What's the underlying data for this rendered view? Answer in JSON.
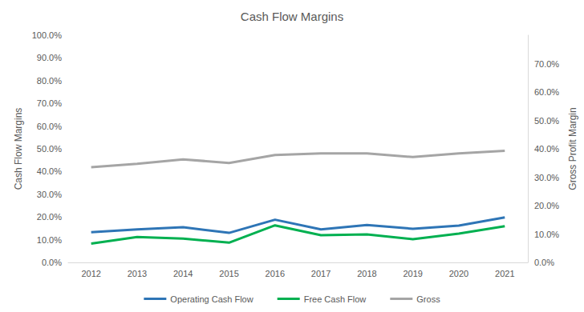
{
  "chart_data": {
    "type": "line",
    "title": "Cash Flow Margins",
    "y_label": "Cash Flow Margins",
    "y2_label": "Gross Profit Margin",
    "categories": [
      "2012",
      "2013",
      "2014",
      "2015",
      "2016",
      "2017",
      "2018",
      "2019",
      "2020",
      "2021"
    ],
    "series": [
      {
        "name": "Operating Cash Flow",
        "color": "#2e75b6",
        "values": [
          13.3,
          14.5,
          15.5,
          13.0,
          18.8,
          14.5,
          16.5,
          14.8,
          16.2,
          19.8
        ]
      },
      {
        "name": "Free Cash Flow",
        "color": "#00b050",
        "values": [
          8.3,
          11.2,
          10.5,
          8.7,
          16.3,
          12.0,
          12.3,
          10.2,
          12.7,
          15.9
        ]
      },
      {
        "name": "Gross",
        "color": "#a5a5a5",
        "axis": "y2",
        "values": [
          33.5,
          34.7,
          36.3,
          35.0,
          37.8,
          38.4,
          38.4,
          37.1,
          38.4,
          39.3
        ]
      }
    ],
    "ylim": [
      0,
      100
    ],
    "yticks": [
      {
        "value": 0,
        "label": "0.0%"
      },
      {
        "value": 10,
        "label": "10.0%"
      },
      {
        "value": 20,
        "label": "20.0%"
      },
      {
        "value": 30,
        "label": "30.0%"
      },
      {
        "value": 40,
        "label": "40.0%"
      },
      {
        "value": 50,
        "label": "50.0%"
      },
      {
        "value": 60,
        "label": "60.0%"
      },
      {
        "value": 70,
        "label": "70.0%"
      },
      {
        "value": 80,
        "label": "80.0%"
      },
      {
        "value": 90,
        "label": "90.0%"
      },
      {
        "value": 100,
        "label": "100.0%"
      }
    ],
    "y2lim": [
      0,
      80
    ],
    "y2ticks": [
      {
        "value": 0,
        "label": "0.0%"
      },
      {
        "value": 10,
        "label": "10.0%"
      },
      {
        "value": 20,
        "label": "20.0%"
      },
      {
        "value": 30,
        "label": "30.0%"
      },
      {
        "value": 40,
        "label": "40.0%"
      },
      {
        "value": 50,
        "label": "50.0%"
      },
      {
        "value": 60,
        "label": "60.0%"
      },
      {
        "value": 70,
        "label": "70.0%"
      }
    ],
    "grid": false,
    "legend": "bottom"
  }
}
